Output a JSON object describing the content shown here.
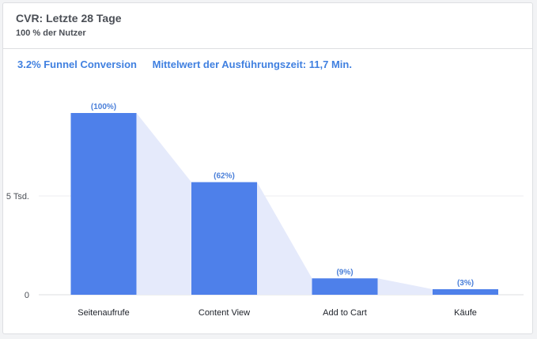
{
  "header": {
    "title": "CVR: Letzte 28 Tage",
    "subtitle": "100 % der Nutzer"
  },
  "metrics": {
    "funnel_conversion": "3.2% Funnel Conversion",
    "avg_time": "Mittelwert der Ausführungszeit: 11,7 Min."
  },
  "colors": {
    "bar": "#4e80ea",
    "funnel_area": "#e5eafb",
    "metric_text": "#4080e0"
  },
  "chart_data": {
    "type": "bar",
    "categories": [
      "Seitenaufrufe",
      "Content View",
      "Add to Cart",
      "Käufe"
    ],
    "values": [
      9200,
      5700,
      830,
      280
    ],
    "percent_labels": [
      "(100%)",
      "(62%)",
      "(9%)",
      "(3%)"
    ],
    "ylim": [
      0,
      10000
    ],
    "yticks": [
      {
        "value": 0,
        "label": "0"
      },
      {
        "value": 5000,
        "label": "5 Tsd."
      }
    ],
    "grid": true,
    "legend": "none"
  }
}
